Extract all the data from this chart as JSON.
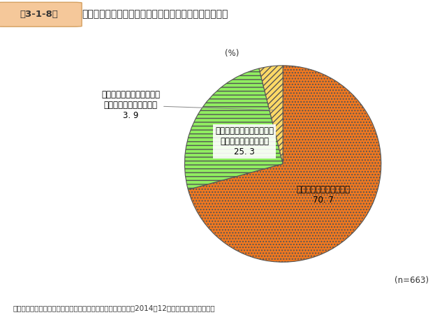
{
  "title_box": "第3-1-8図",
  "title_text": "最も成功した事例における地域資源の継続的活用可能性",
  "slices": [
    {
      "label": "継続的に活用可能である\n70. 7",
      "value": 70.7,
      "color": "#F07820",
      "hatch": "...."
    },
    {
      "label": "どちらともいえない（今後\n見極める必要がある）\n25. 3",
      "value": 25.3,
      "color": "#90EE60",
      "hatch": "---"
    },
    {
      "label_outside": "継続的に活用可能ではない\n（一時的に活用できた）\n3. 9",
      "value": 3.9,
      "color": "#FFD966",
      "hatch": "////"
    }
  ],
  "percent_label": "(%)",
  "n_label": "(n=663)",
  "source_text": "資料：中小企業庁委託「地域活性化への取組に関する調査」（2014年12月、ランドブレイン㈱）",
  "background_color": "#ffffff",
  "pie_edge_color": "#555555",
  "start_angle": 90,
  "figsize": [
    6.33,
    4.51
  ],
  "dpi": 100
}
